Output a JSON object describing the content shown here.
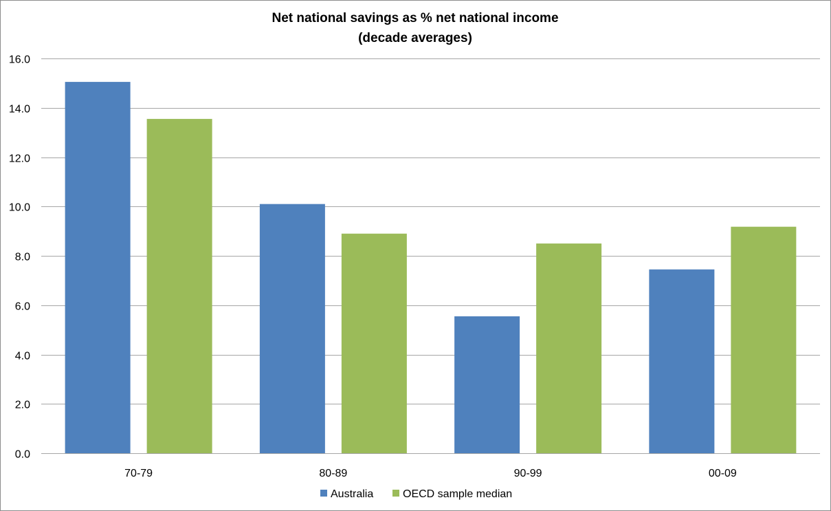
{
  "chart_data": {
    "type": "bar",
    "title": [
      "Net national savings as % net national income",
      "(decade averages)"
    ],
    "categories": [
      "70-79",
      "80-89",
      "90-99",
      "00-09"
    ],
    "series": [
      {
        "name": "Australia",
        "color": "#4f81bd",
        "values": [
          15.05,
          10.1,
          5.55,
          7.45
        ]
      },
      {
        "name": "OECD sample median",
        "color": "#9bbb59",
        "values": [
          13.55,
          8.9,
          8.5,
          9.18
        ]
      }
    ],
    "y_ticks": [
      "0.0",
      "2.0",
      "4.0",
      "6.0",
      "8.0",
      "10.0",
      "12.0",
      "14.0",
      "16.0"
    ],
    "ylim": [
      0,
      16
    ],
    "xlabel": "",
    "ylabel": "",
    "grid": true,
    "legend_position": "bottom"
  }
}
